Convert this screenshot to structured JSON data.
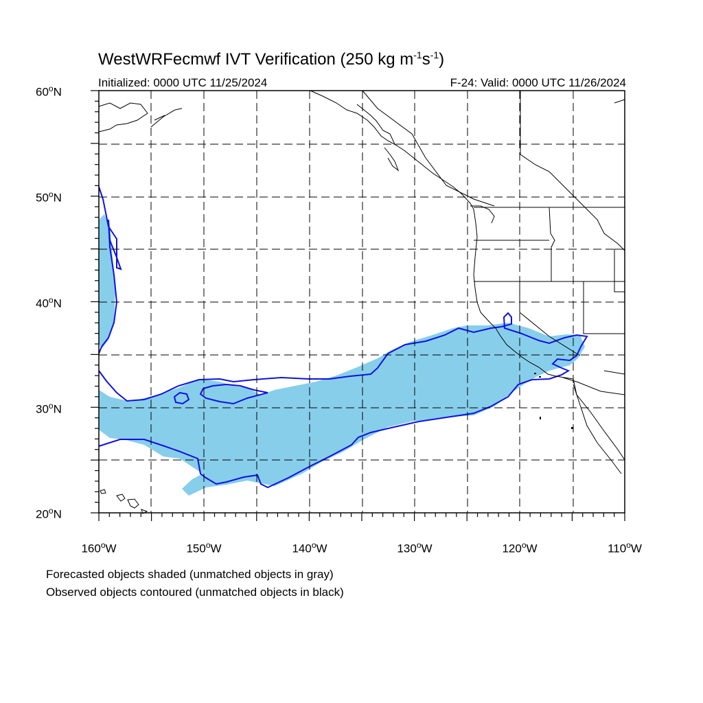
{
  "header": {
    "title_main": "WestWRFecmwf IVT Verification (250 kg m",
    "title_sup1": "-1",
    "title_mid": "s",
    "title_sup2": "-1",
    "title_end": ")",
    "initialized": "Initialized: 0000 UTC 11/25/2024",
    "valid": "F-24: Valid: 0000 UTC 11/26/2024"
  },
  "axes": {
    "lat_labels": [
      {
        "num": "60",
        "deg": "o",
        "hem": "N"
      },
      {
        "num": "50",
        "deg": "o",
        "hem": "N"
      },
      {
        "num": "40",
        "deg": "o",
        "hem": "N"
      },
      {
        "num": "30",
        "deg": "o",
        "hem": "N"
      },
      {
        "num": "20",
        "deg": "o",
        "hem": "N"
      }
    ],
    "lon_labels": [
      {
        "num": "160",
        "deg": "o",
        "hem": "W"
      },
      {
        "num": "150",
        "deg": "o",
        "hem": "W"
      },
      {
        "num": "140",
        "deg": "o",
        "hem": "W"
      },
      {
        "num": "130",
        "deg": "o",
        "hem": "W"
      },
      {
        "num": "120",
        "deg": "o",
        "hem": "W"
      },
      {
        "num": "110",
        "deg": "o",
        "hem": "W"
      }
    ],
    "lat_range": [
      20,
      60
    ],
    "lon_range": [
      -160,
      -110
    ],
    "gridline_interval_deg": 5
  },
  "legend": {
    "line1": "Forecasted objects shaded (unmatched objects in gray)",
    "line2": "Observed objects contoured (unmatched objects in black)"
  },
  "colors": {
    "forecast_fill": "#87ceeb",
    "observed_contour": "#1010e0",
    "coastline": "#000000",
    "grid": "#000000"
  }
}
